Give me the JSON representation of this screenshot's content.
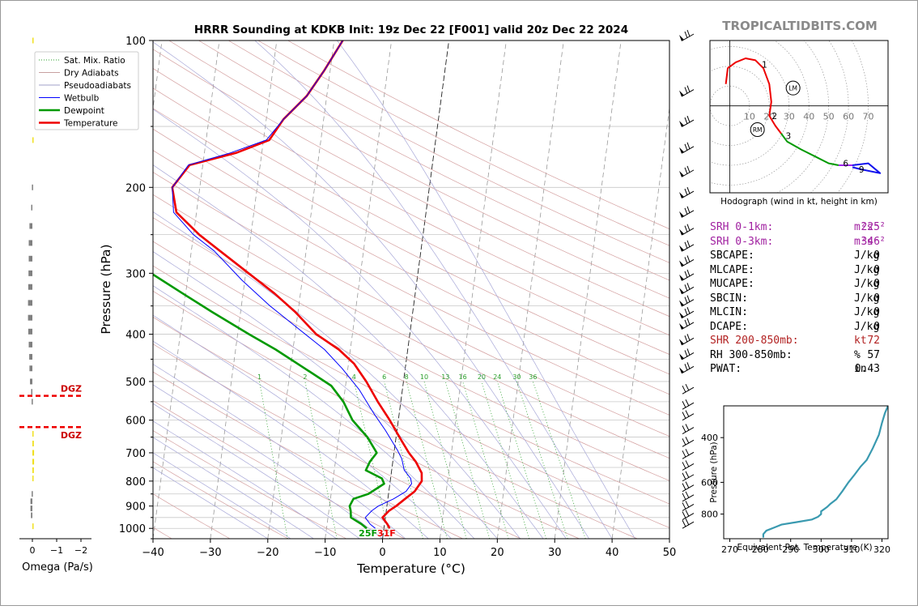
{
  "page": {
    "title": "HRRR Sounding at KDKB Init: 19z Dec 22 [F001] valid 20z Dec 22 2024",
    "watermark": "TROPICALTIDBITS.COM"
  },
  "chart_data": [
    {
      "type": "line",
      "name": "skew-t",
      "xlabel": "Temperature (°C)",
      "ylabel": "Pressure (hPa)",
      "xlim": [
        -40,
        50
      ],
      "ylim": [
        1050,
        100
      ],
      "y_scale": "log",
      "x_ticks": [
        "−40",
        "−30",
        "−20",
        "−10",
        "0",
        "10",
        "20",
        "30",
        "40",
        "50"
      ],
      "x_tick_values": [
        -40,
        -30,
        -20,
        -10,
        0,
        10,
        20,
        30,
        40,
        50
      ],
      "y_ticks": [
        "100",
        "200",
        "300",
        "400",
        "500",
        "600",
        "700",
        "800",
        "900",
        "1000"
      ],
      "y_tick_values": [
        100,
        200,
        300,
        400,
        500,
        600,
        700,
        800,
        900,
        1000
      ],
      "legend": {
        "placement": "top-left",
        "entries": [
          {
            "label": "Sat. Mix. Ratio",
            "color": "#2ca02c",
            "style": "dotted"
          },
          {
            "label": "Dry Adiabats",
            "color": "#c8a0a0",
            "style": "solid"
          },
          {
            "label": "Pseudoadiabats",
            "color": "#a0a0c8",
            "style": "solid"
          },
          {
            "label": "Wetbulb",
            "color": "#0000ff",
            "style": "solid"
          },
          {
            "label": "Dewpoint",
            "color": "#009900",
            "style": "solid"
          },
          {
            "label": "Temperature",
            "color": "#ee0000",
            "style": "solid"
          }
        ]
      },
      "mixing_ratio_labels": [
        "1",
        "2",
        "4",
        "6",
        "8",
        "10",
        "13",
        "16",
        "20",
        "24",
        "30",
        "36"
      ],
      "mixing_ratio_values": [
        1,
        2,
        4,
        6,
        8,
        10,
        13,
        16,
        20,
        24,
        30,
        36
      ],
      "surface_labels": {
        "dewpoint": "25F",
        "temperature": "31F"
      },
      "series": [
        {
          "name": "Temperature",
          "color": "#ee0000",
          "points": [
            [
              1.0,
              1000
            ],
            [
              0.5,
              980
            ],
            [
              -0.5,
              950
            ],
            [
              0.5,
              920
            ],
            [
              1.6,
              900
            ],
            [
              3.0,
              870
            ],
            [
              4.5,
              840
            ],
            [
              5.5,
              800
            ],
            [
              5.3,
              770
            ],
            [
              4.0,
              730
            ],
            [
              2.6,
              700
            ],
            [
              1.0,
              660
            ],
            [
              -1.5,
              600
            ],
            [
              -4,
              550
            ],
            [
              -6.5,
              500
            ],
            [
              -9,
              460
            ],
            [
              -12,
              430
            ],
            [
              -16.3,
              400
            ],
            [
              -20.5,
              360
            ],
            [
              -24.5,
              330
            ],
            [
              -29.5,
              300
            ],
            [
              -35,
              270
            ],
            [
              -39,
              250
            ],
            [
              -43.5,
              225
            ],
            [
              -44.8,
              200
            ],
            [
              -42.3,
              180
            ],
            [
              -34.5,
              170
            ],
            [
              -29,
              160
            ],
            [
              -27,
              145
            ],
            [
              -23.5,
              130
            ],
            [
              -21,
              115
            ],
            [
              -18.5,
              100
            ]
          ]
        },
        {
          "name": "Dewpoint",
          "color": "#009900",
          "points": [
            [
              -3.0,
              1000
            ],
            [
              -4.0,
              980
            ],
            [
              -6.0,
              950
            ],
            [
              -6.2,
              920
            ],
            [
              -6.5,
              900
            ],
            [
              -6.0,
              870
            ],
            [
              -3.5,
              850
            ],
            [
              -1.0,
              810
            ],
            [
              -1.5,
              790
            ],
            [
              -4.5,
              760
            ],
            [
              -4.0,
              730
            ],
            [
              -3.0,
              700
            ],
            [
              -5.0,
              650
            ],
            [
              -8.0,
              600
            ],
            [
              -10.0,
              550
            ],
            [
              -12.5,
              510
            ],
            [
              -17.5,
              470
            ],
            [
              -23,
              430
            ],
            [
              -28,
              400
            ],
            [
              -35,
              360
            ],
            [
              -40.5,
              330
            ],
            [
              -46.5,
              300
            ],
            [
              -51.5,
              270
            ],
            [
              -54,
              250
            ],
            [
              -55.8,
              225
            ],
            [
              -56.3,
              200
            ],
            [
              -60,
              175
            ],
            [
              -69.5,
              150
            ],
            [
              -66,
              135
            ],
            [
              -63,
              120
            ],
            [
              -60,
              110
            ],
            [
              -57.5,
              100
            ]
          ]
        },
        {
          "name": "Wetbulb",
          "color": "#0000ff",
          "points": [
            [
              -1.5,
              1000
            ],
            [
              -2.5,
              980
            ],
            [
              -3.5,
              950
            ],
            [
              -2.5,
              920
            ],
            [
              -1.5,
              900
            ],
            [
              1.0,
              870
            ],
            [
              3.0,
              840
            ],
            [
              3.8,
              810
            ],
            [
              3.5,
              790
            ],
            [
              2.2,
              760
            ],
            [
              1.5,
              720
            ],
            [
              0.5,
              690
            ],
            [
              -2.0,
              630
            ],
            [
              -4.5,
              580
            ],
            [
              -7.5,
              520
            ],
            [
              -11,
              470
            ],
            [
              -14.5,
              430
            ],
            [
              -19.5,
              390
            ],
            [
              -25,
              350
            ],
            [
              -30.5,
              310
            ],
            [
              -36,
              270
            ],
            [
              -40,
              250
            ],
            [
              -44,
              225
            ],
            [
              -44.8,
              200
            ],
            [
              -42.5,
              180
            ],
            [
              -35.5,
              170
            ],
            [
              -29.5,
              160
            ],
            [
              -27,
              145
            ],
            [
              -23.5,
              130
            ],
            [
              -21,
              115
            ],
            [
              -18.5,
              100
            ]
          ]
        }
      ],
      "wind_barbs_hpa": [
        100,
        130,
        150,
        170,
        190,
        210,
        230,
        250,
        270,
        290,
        310,
        330,
        350,
        370,
        390,
        420,
        450,
        480,
        530,
        570,
        600,
        640,
        680,
        720,
        760,
        800,
        840,
        880,
        920,
        960,
        1000
      ]
    },
    {
      "type": "bar",
      "name": "omega",
      "xlabel": "Omega (Pa/s)",
      "x_ticks": [
        "0",
        "−1",
        "−2"
      ],
      "x_tick_values": [
        0,
        -1,
        -2
      ],
      "dgz_label": "DGZ",
      "dgz_hpa": [
        535,
        620
      ],
      "values": [
        {
          "p": 100,
          "omega": -0.05,
          "color": "#f0e020"
        },
        {
          "p": 160,
          "omega": -0.05,
          "color": "#f0e020"
        },
        {
          "p": 200,
          "omega": 0.02,
          "color": "#808080"
        },
        {
          "p": 220,
          "omega": 0.05,
          "color": "#808080"
        },
        {
          "p": 240,
          "omega": 0.12,
          "color": "#808080"
        },
        {
          "p": 260,
          "omega": 0.15,
          "color": "#808080"
        },
        {
          "p": 280,
          "omega": 0.15,
          "color": "#808080"
        },
        {
          "p": 300,
          "omega": 0.16,
          "color": "#808080"
        },
        {
          "p": 320,
          "omega": 0.17,
          "color": "#808080"
        },
        {
          "p": 345,
          "omega": 0.18,
          "color": "#808080"
        },
        {
          "p": 370,
          "omega": 0.18,
          "color": "#808080"
        },
        {
          "p": 395,
          "omega": 0.17,
          "color": "#808080"
        },
        {
          "p": 420,
          "omega": 0.15,
          "color": "#808080"
        },
        {
          "p": 445,
          "omega": 0.13,
          "color": "#808080"
        },
        {
          "p": 470,
          "omega": 0.12,
          "color": "#808080"
        },
        {
          "p": 500,
          "omega": 0.1,
          "color": "#808080"
        },
        {
          "p": 525,
          "omega": 0.05,
          "color": "#808080"
        },
        {
          "p": 550,
          "omega": 0.03,
          "color": "#808080"
        },
        {
          "p": 640,
          "omega": -0.04,
          "color": "#f0e020"
        },
        {
          "p": 670,
          "omega": -0.06,
          "color": "#f0e020"
        },
        {
          "p": 700,
          "omega": -0.07,
          "color": "#f0e020"
        },
        {
          "p": 730,
          "omega": -0.07,
          "color": "#f0e020"
        },
        {
          "p": 760,
          "omega": -0.06,
          "color": "#f0e020"
        },
        {
          "p": 790,
          "omega": -0.05,
          "color": "#f0e020"
        },
        {
          "p": 850,
          "omega": 0.03,
          "color": "#808080"
        },
        {
          "p": 880,
          "omega": 0.08,
          "color": "#808080"
        },
        {
          "p": 910,
          "omega": 0.08,
          "color": "#808080"
        },
        {
          "p": 940,
          "omega": 0.06,
          "color": "#808080"
        },
        {
          "p": 990,
          "omega": -0.03,
          "color": "#f0e020"
        }
      ]
    },
    {
      "type": "line",
      "name": "hodograph",
      "xlabel": "Hodograph (wind in kt, height in km)",
      "xlim": [
        -10,
        80
      ],
      "ylim": [
        -45,
        33
      ],
      "ring_labels": [
        "10",
        "20",
        "30",
        "40",
        "50",
        "60",
        "70"
      ],
      "ring_values": [
        10,
        20,
        30,
        40,
        50,
        60,
        70
      ],
      "height_labels": [
        {
          "label": "1",
          "u": 15,
          "v": 21
        },
        {
          "label": "2",
          "u": 20,
          "v": -5
        },
        {
          "label": "3",
          "u": 27,
          "v": -15
        },
        {
          "label": "6",
          "u": 56,
          "v": -29
        },
        {
          "label": "9",
          "u": 64,
          "v": -32
        }
      ],
      "markers": [
        {
          "label": "LM",
          "u": 32,
          "v": 9
        },
        {
          "label": "RM",
          "u": 14,
          "v": -12
        }
      ],
      "segments": [
        {
          "color": "#ee0000",
          "points": [
            [
              -2,
              11
            ],
            [
              -1,
              19
            ],
            [
              3,
              22
            ],
            [
              8,
              24
            ],
            [
              13,
              23
            ],
            [
              17,
              19
            ],
            [
              20,
              11
            ],
            [
              21,
              2
            ],
            [
              20,
              -5
            ],
            [
              23,
              -10
            ],
            [
              26,
              -14
            ]
          ]
        },
        {
          "color": "#009900",
          "points": [
            [
              26,
              -14
            ],
            [
              29,
              -18
            ],
            [
              36,
              -22
            ],
            [
              44,
              -26
            ],
            [
              50,
              -29
            ],
            [
              55,
              -30
            ]
          ]
        },
        {
          "color": "#a020f0",
          "points": [
            [
              55,
              -30
            ],
            [
              62,
              -30
            ]
          ]
        },
        {
          "color": "#1010ee",
          "points": [
            [
              62,
              -30
            ],
            [
              70,
              -29
            ],
            [
              76,
              -34
            ],
            [
              66,
              -32
            ],
            [
              62,
              -31
            ]
          ]
        }
      ]
    },
    {
      "type": "line",
      "name": "theta-e",
      "xlabel": "Equivalent Pot. Temperature (K)",
      "ylabel": "Pressure (hPa)",
      "xlim": [
        268,
        322
      ],
      "ylim": [
        1000,
        300
      ],
      "x_ticks": [
        "270",
        "280",
        "290",
        "300",
        "310",
        "320"
      ],
      "x_tick_values": [
        270,
        280,
        290,
        300,
        310,
        320
      ],
      "y_ticks": [
        "400",
        "600",
        "800"
      ],
      "y_tick_values": [
        400,
        600,
        800
      ],
      "series": [
        {
          "name": "",
          "color": "#3a9ab0",
          "points": [
            [
              281,
              990
            ],
            [
              281,
              960
            ],
            [
              282,
              930
            ],
            [
              285,
              900
            ],
            [
              287,
              880
            ],
            [
              292,
              860
            ],
            [
              297,
              840
            ],
            [
              299,
              820
            ],
            [
              300,
              800
            ],
            [
              300,
              780
            ],
            [
              302,
              750
            ],
            [
              303,
              730
            ],
            [
              305,
              700
            ],
            [
              307,
              650
            ],
            [
              309,
              600
            ],
            [
              311,
              560
            ],
            [
              313,
              520
            ],
            [
              315,
              490
            ],
            [
              317,
              440
            ],
            [
              319,
              390
            ],
            [
              320,
              350
            ],
            [
              321,
              320
            ],
            [
              322,
              300
            ]
          ]
        }
      ]
    }
  ],
  "params": {
    "rows": [
      {
        "label": "SRH 0-1km:",
        "value": "225",
        "unit": "m²s⁻²",
        "color": "purple"
      },
      {
        "label": "SRH 0-3km:",
        "value": "346",
        "unit": "m²s⁻²",
        "color": "purple"
      },
      {
        "label": "SBCAPE:",
        "value": "0",
        "unit": "J/kg",
        "color": "black"
      },
      {
        "label": "MLCAPE:",
        "value": "0",
        "unit": "J/kg",
        "color": "black"
      },
      {
        "label": "MUCAPE:",
        "value": "0",
        "unit": "J/kg",
        "color": "black"
      },
      {
        "label": "SBCIN:",
        "value": "0",
        "unit": "J/kg",
        "color": "black"
      },
      {
        "label": "MLCIN:",
        "value": "0",
        "unit": "J/kg",
        "color": "black"
      },
      {
        "label": "DCAPE:",
        "value": "0",
        "unit": "J/kg",
        "color": "black"
      },
      {
        "label": "SHR 200-850mb:",
        "value": "72",
        "unit": "kt",
        "color": "red"
      },
      {
        "label": "RH 300-850mb:",
        "value": "57",
        "unit": "%",
        "color": "black"
      },
      {
        "label": "PWAT:",
        "value": "0.43",
        "unit": "in",
        "color": "black"
      }
    ]
  }
}
